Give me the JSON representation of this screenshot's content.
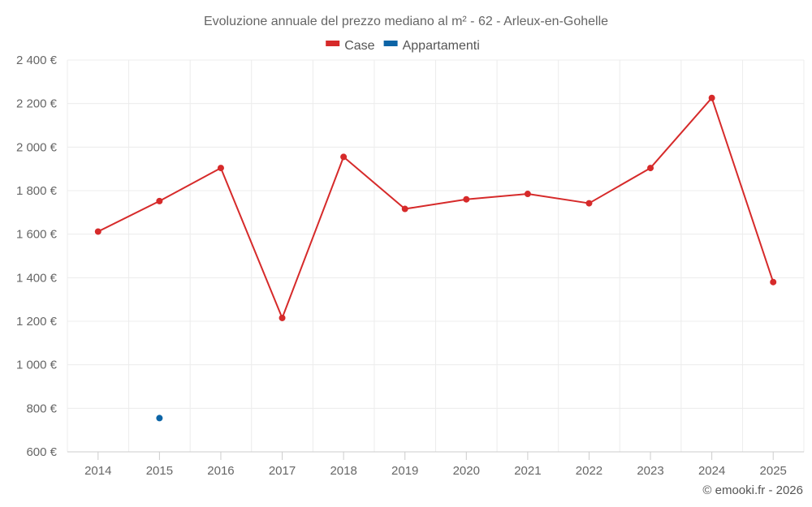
{
  "chart_data": {
    "type": "line",
    "title": "Evoluzione annuale del prezzo mediano al m² - 62 - Arleux-en-Gohelle",
    "categories": [
      "2014",
      "2015",
      "2016",
      "2017",
      "2018",
      "2019",
      "2020",
      "2021",
      "2022",
      "2023",
      "2024",
      "2025"
    ],
    "series": [
      {
        "name": "Case",
        "color": "#d62a2a",
        "values": [
          1612,
          1752,
          1904,
          1215,
          1955,
          1716,
          1760,
          1785,
          1742,
          1904,
          2226,
          1380
        ]
      },
      {
        "name": "Appartamenti",
        "color": "#0c64a6",
        "values": [
          null,
          755,
          null,
          null,
          null,
          null,
          null,
          null,
          null,
          null,
          null,
          null
        ]
      }
    ],
    "ylim": [
      600,
      2400
    ],
    "yticks": [
      600,
      800,
      1000,
      1200,
      1400,
      1600,
      1800,
      2000,
      2200,
      2400
    ],
    "ytick_labels": [
      "600 €",
      "800 €",
      "1 000 €",
      "1 200 €",
      "1 400 €",
      "1 600 €",
      "1 800 €",
      "2 000 €",
      "2 200 €",
      "2 400 €"
    ],
    "xlabel": "",
    "ylabel": "",
    "grid": true,
    "legend_position": "top-center"
  },
  "credit": "© emooki.fr - 2026"
}
